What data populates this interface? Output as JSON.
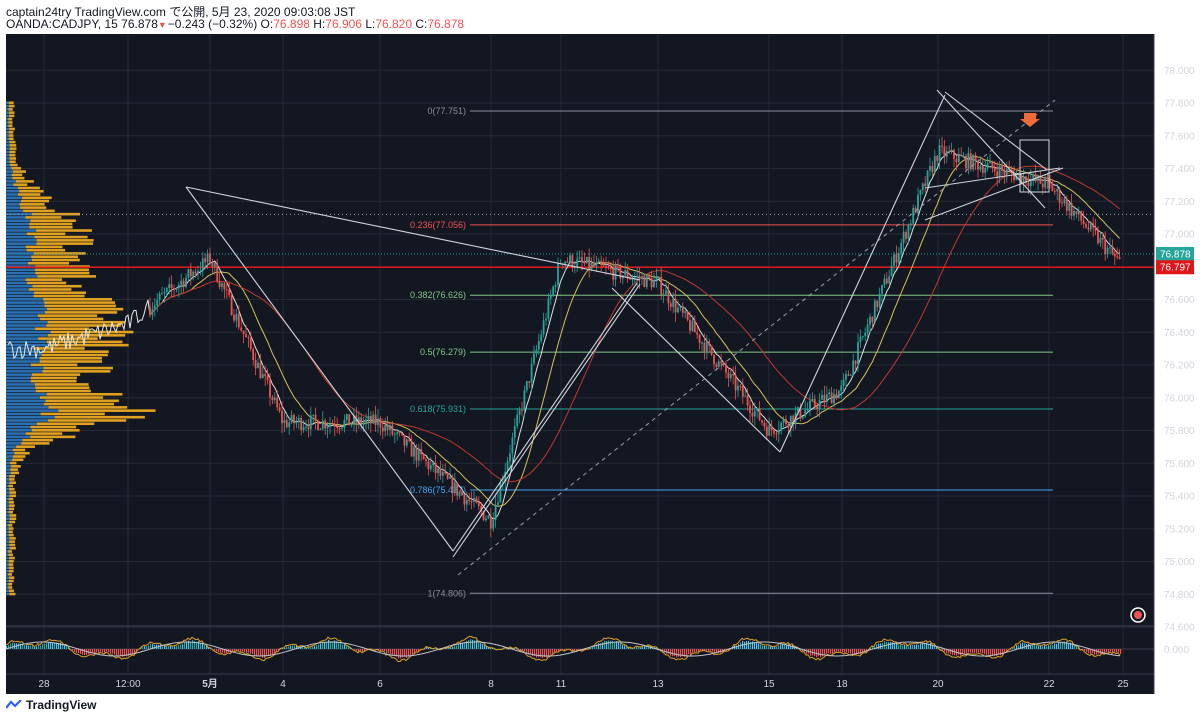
{
  "header": {
    "line1": "captain24try TradingView.com で公開, 5月 23, 2020 09:03:08 JST",
    "symbol": "OANDA:CADJPY, 15",
    "last": "76.878",
    "change": "−0.243 (−0.32%)",
    "open_label": "O:",
    "open": "76.898",
    "high_label": "H:",
    "high": "76.906",
    "low_label": "L:",
    "low": "76.820",
    "close_label": "C:",
    "close": "76.878"
  },
  "footer": {
    "brand": "TradingView"
  },
  "colors": {
    "background": "#131722",
    "up": "#26a69a",
    "down": "#ef5350",
    "ma_fast": "#e0e0e0",
    "ma_mid": "#d4c15a",
    "ma_slow": "#c0392b",
    "volume_profile": "#e0a020",
    "volume_profile_alt": "#2a6fb0",
    "price_tag_last": "#26a69a",
    "price_tag_line": "#e0171a"
  },
  "chart_data": {
    "type": "candlestick",
    "symbol": "OANDA:CADJPY",
    "timeframe": "15",
    "x_ticks": [
      "28",
      "12:00",
      "5月",
      "4",
      "6",
      "8",
      "11",
      "13",
      "15",
      "18",
      "20",
      "22",
      "25"
    ],
    "y_ticks": [
      "78.000",
      "77.800",
      "77.600",
      "77.400",
      "77.200",
      "77.000",
      "76.800",
      "76.600",
      "76.400",
      "76.200",
      "76.000",
      "75.800",
      "75.600",
      "75.400",
      "75.200",
      "75.000",
      "74.800",
      "74.600"
    ],
    "ylim": [
      74.5,
      78.1
    ],
    "path_segments": [
      {
        "x": [
          "28",
          "12:00",
          "5月"
        ],
        "close": [
          76.3,
          76.45,
          76.85
        ]
      },
      {
        "x": [
          "5月",
          "4",
          "6"
        ],
        "close": [
          76.85,
          75.85,
          75.85
        ]
      },
      {
        "x": [
          "6",
          "8"
        ],
        "close": [
          75.85,
          75.25
        ]
      },
      {
        "x": [
          "8",
          "11",
          "13"
        ],
        "close": [
          75.25,
          76.85,
          76.7
        ]
      },
      {
        "x": [
          "13",
          "15",
          "18"
        ],
        "close": [
          76.7,
          75.8,
          76.05
        ]
      },
      {
        "x": [
          "18",
          "20",
          "22",
          "25"
        ],
        "close": [
          76.05,
          77.5,
          77.3,
          76.8
        ]
      }
    ],
    "fibonacci": [
      {
        "label": "0(77.751)",
        "price": 77.751
      },
      {
        "label": "0.236(77.056)",
        "price": 77.056
      },
      {
        "label": "0.382(76.626)",
        "price": 76.626
      },
      {
        "label": "0.5(76.279)",
        "price": 76.279
      },
      {
        "label": "0.618(75.931)",
        "price": 75.931
      },
      {
        "label": "0.786(75.437)",
        "price": 75.437
      },
      {
        "label": "1(74.806)",
        "price": 74.806
      }
    ],
    "price_labels": [
      {
        "value": "76.878",
        "price": 76.878
      },
      {
        "value": "76.797",
        "price": 76.797
      }
    ],
    "oscillator": {
      "ytick": "0.000",
      "level": 0
    }
  }
}
